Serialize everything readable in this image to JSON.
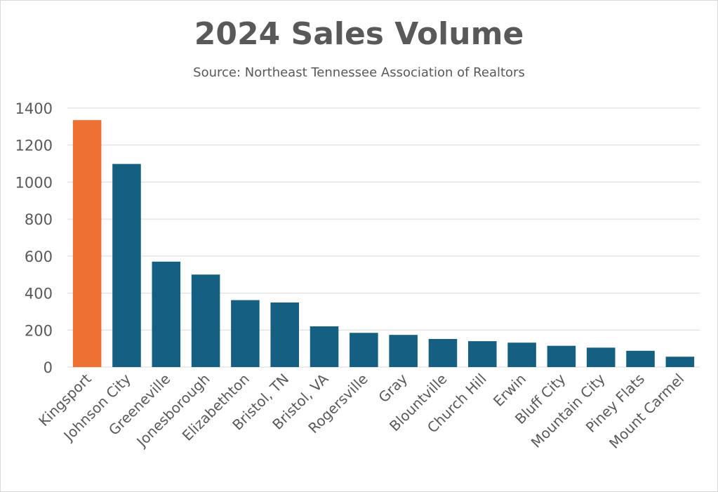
{
  "chart_data": {
    "type": "bar",
    "title": "2024 Sales Volume",
    "subtitle": "Source: Northeast Tennessee Association of Realtors",
    "xlabel": "",
    "ylabel": "",
    "ylim": [
      0,
      1400
    ],
    "yticks": [
      0,
      200,
      400,
      600,
      800,
      1000,
      1200,
      1400
    ],
    "grid": true,
    "legend": "none",
    "categories": [
      "Kingsport",
      "Johnson City",
      "Greeneville",
      "Jonesborough",
      "Elizabethton",
      "Bristol, TN",
      "Bristol, VA",
      "Rogersville",
      "Gray",
      "Blountville",
      "Church Hill",
      "Erwin",
      "Bluff City",
      "Mountain City",
      "Piney Flats",
      "Mount Carmel"
    ],
    "values": [
      1335,
      1098,
      570,
      500,
      362,
      349,
      220,
      185,
      174,
      152,
      140,
      132,
      115,
      105,
      88,
      56
    ],
    "colors": {
      "highlight": "#ED7133",
      "default": "#155F82",
      "grid": "#D9D9D9",
      "text": "#595959"
    },
    "highlight_index": 0
  }
}
